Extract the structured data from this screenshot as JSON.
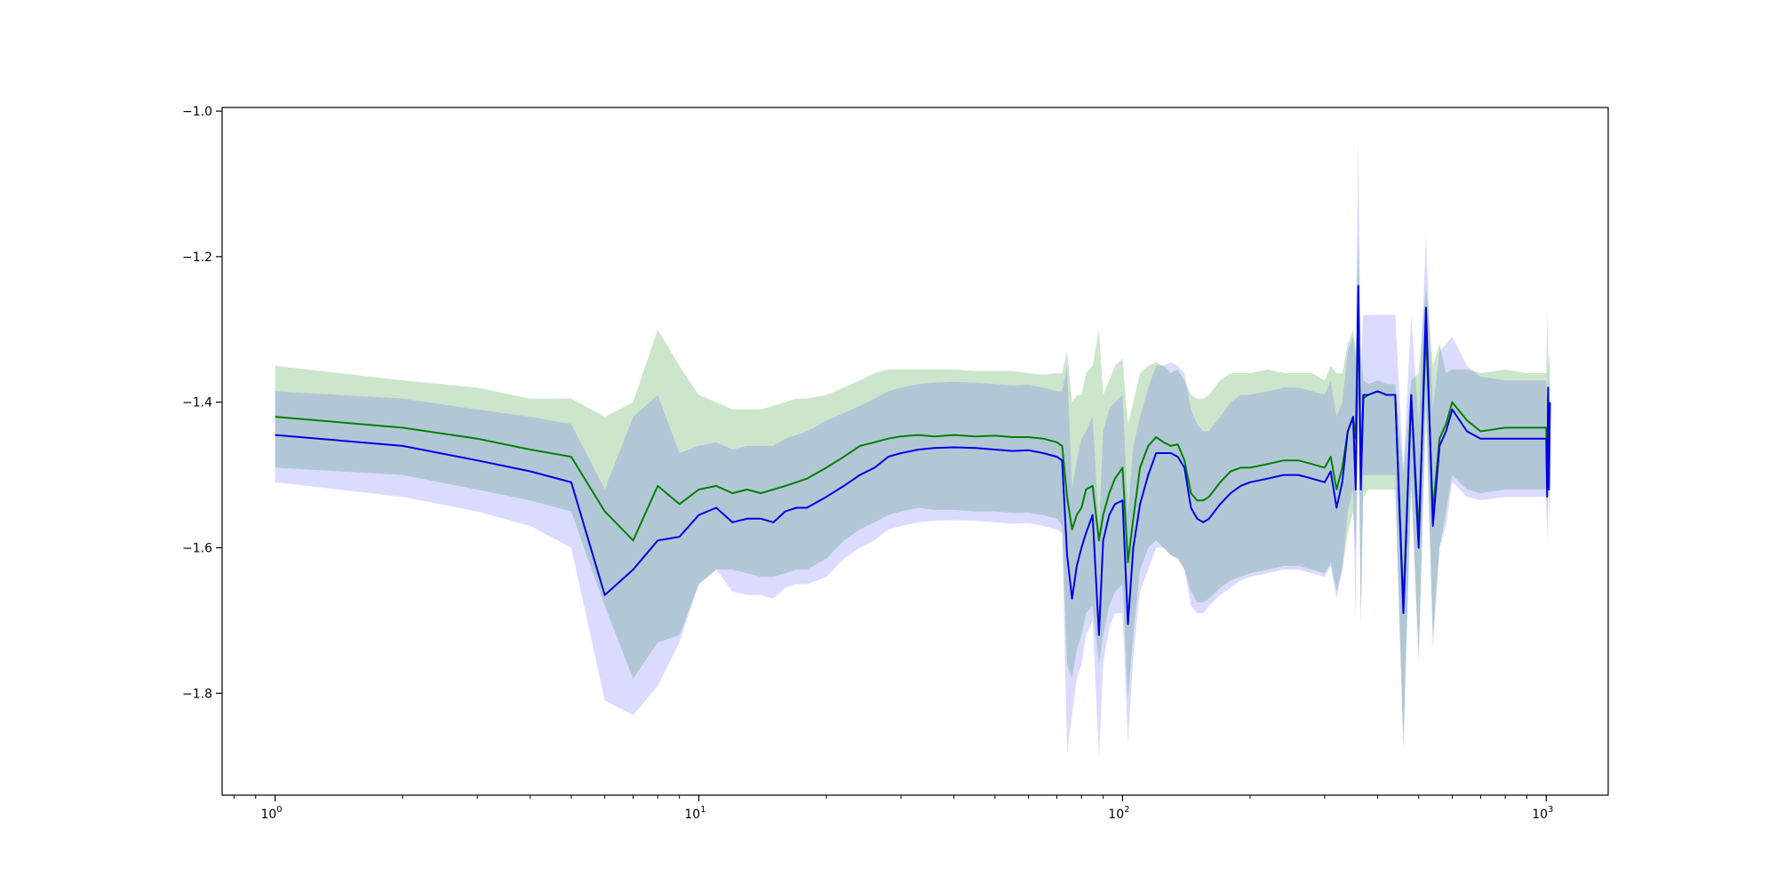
{
  "chart_data": {
    "type": "line",
    "xscale": "log",
    "xlim": [
      0.75,
      1400
    ],
    "ylim": [
      -1.94,
      -0.995
    ],
    "xticks": [
      {
        "value": 1,
        "base": "10",
        "exp": "0"
      },
      {
        "value": 10,
        "base": "10",
        "exp": "1"
      },
      {
        "value": 100,
        "base": "10",
        "exp": "2"
      },
      {
        "value": 1000,
        "base": "10",
        "exp": "3"
      }
    ],
    "yticks": [
      {
        "value": -1.0,
        "label": "−1.0"
      },
      {
        "value": -1.2,
        "label": "−1.2"
      },
      {
        "value": -1.4,
        "label": "−1.4"
      },
      {
        "value": -1.6,
        "label": "−1.6"
      },
      {
        "value": -1.8,
        "label": "−1.8"
      }
    ],
    "grid": false,
    "legend": "none",
    "series": [
      {
        "color": "#008000",
        "band_color": "#008000",
        "x": [
          1,
          2,
          3,
          4,
          5,
          6,
          7,
          8,
          9,
          10,
          11,
          12,
          13,
          14,
          15,
          16,
          17,
          18,
          20,
          22,
          24,
          26,
          28,
          30,
          33,
          36,
          40,
          45,
          50,
          55,
          60,
          65,
          70,
          72,
          74,
          76,
          78,
          80,
          82,
          85,
          88,
          90,
          93,
          96,
          100,
          103,
          106,
          110,
          115,
          120,
          125,
          130,
          135,
          140,
          145,
          150,
          155,
          160,
          170,
          180,
          190,
          200,
          220,
          240,
          260,
          280,
          300,
          310,
          320,
          330,
          340,
          350,
          355,
          360,
          365,
          370,
          380,
          400,
          420,
          440,
          460,
          480,
          500,
          520,
          540,
          560,
          580,
          600,
          650,
          700,
          800,
          900,
          1000,
          1005,
          1010,
          1015,
          1020
        ],
        "y": [
          -1.42,
          -1.435,
          -1.45,
          -1.465,
          -1.475,
          -1.55,
          -1.59,
          -1.515,
          -1.54,
          -1.52,
          -1.515,
          -1.525,
          -1.52,
          -1.525,
          -1.52,
          -1.515,
          -1.51,
          -1.505,
          -1.49,
          -1.475,
          -1.46,
          -1.455,
          -1.45,
          -1.447,
          -1.445,
          -1.447,
          -1.445,
          -1.447,
          -1.446,
          -1.448,
          -1.448,
          -1.45,
          -1.455,
          -1.46,
          -1.53,
          -1.575,
          -1.555,
          -1.545,
          -1.52,
          -1.515,
          -1.59,
          -1.555,
          -1.525,
          -1.505,
          -1.49,
          -1.62,
          -1.56,
          -1.49,
          -1.46,
          -1.448,
          -1.455,
          -1.46,
          -1.458,
          -1.48,
          -1.525,
          -1.535,
          -1.535,
          -1.53,
          -1.51,
          -1.495,
          -1.49,
          -1.49,
          -1.485,
          -1.48,
          -1.48,
          -1.485,
          -1.49,
          -1.475,
          -1.52,
          -1.49,
          -1.44,
          -1.42,
          -1.45,
          -1.26,
          -1.5,
          -1.395,
          -1.39,
          -1.385,
          -1.39,
          -1.39,
          -1.68,
          -1.39,
          -1.58,
          -1.3,
          -1.55,
          -1.45,
          -1.43,
          -1.4,
          -1.425,
          -1.44,
          -1.435,
          -1.435,
          -1.435,
          -1.52,
          -1.39,
          -1.5,
          -1.4
        ],
        "lower": [
          -1.49,
          -1.5,
          -1.52,
          -1.535,
          -1.55,
          -1.68,
          -1.78,
          -1.73,
          -1.72,
          -1.65,
          -1.63,
          -1.63,
          -1.635,
          -1.64,
          -1.64,
          -1.635,
          -1.63,
          -1.63,
          -1.615,
          -1.59,
          -1.575,
          -1.565,
          -1.555,
          -1.55,
          -1.545,
          -1.548,
          -1.548,
          -1.55,
          -1.55,
          -1.552,
          -1.552,
          -1.555,
          -1.56,
          -1.57,
          -1.76,
          -1.78,
          -1.74,
          -1.72,
          -1.69,
          -1.68,
          -1.76,
          -1.72,
          -1.68,
          -1.66,
          -1.65,
          -1.81,
          -1.72,
          -1.63,
          -1.6,
          -1.59,
          -1.6,
          -1.61,
          -1.615,
          -1.63,
          -1.66,
          -1.675,
          -1.675,
          -1.67,
          -1.655,
          -1.645,
          -1.64,
          -1.635,
          -1.63,
          -1.625,
          -1.625,
          -1.63,
          -1.635,
          -1.62,
          -1.66,
          -1.63,
          -1.58,
          -1.55,
          -1.6,
          -1.4,
          -1.7,
          -1.53,
          -1.52,
          -1.52,
          -1.52,
          -1.52,
          -1.87,
          -1.52,
          -1.75,
          -1.42,
          -1.72,
          -1.6,
          -1.55,
          -1.5,
          -1.52,
          -1.525,
          -1.52,
          -1.52,
          -1.52,
          -1.58,
          -1.46,
          -1.56,
          -1.48
        ],
        "upper": [
          -1.35,
          -1.37,
          -1.38,
          -1.395,
          -1.395,
          -1.42,
          -1.4,
          -1.3,
          -1.35,
          -1.39,
          -1.4,
          -1.41,
          -1.41,
          -1.41,
          -1.405,
          -1.4,
          -1.395,
          -1.395,
          -1.39,
          -1.38,
          -1.37,
          -1.36,
          -1.355,
          -1.355,
          -1.355,
          -1.355,
          -1.355,
          -1.357,
          -1.357,
          -1.357,
          -1.36,
          -1.362,
          -1.36,
          -1.36,
          -1.33,
          -1.4,
          -1.39,
          -1.39,
          -1.36,
          -1.35,
          -1.3,
          -1.39,
          -1.37,
          -1.35,
          -1.34,
          -1.43,
          -1.4,
          -1.36,
          -1.35,
          -1.345,
          -1.35,
          -1.36,
          -1.355,
          -1.37,
          -1.39,
          -1.395,
          -1.395,
          -1.39,
          -1.37,
          -1.36,
          -1.36,
          -1.36,
          -1.355,
          -1.36,
          -1.36,
          -1.36,
          -1.37,
          -1.35,
          -1.36,
          -1.36,
          -1.32,
          -1.3,
          -1.33,
          -1.17,
          -1.33,
          -1.37,
          -1.375,
          -1.37,
          -1.375,
          -1.375,
          -1.5,
          -1.37,
          -1.36,
          -1.24,
          -1.35,
          -1.32,
          -1.36,
          -1.355,
          -1.355,
          -1.36,
          -1.355,
          -1.36,
          -1.36,
          -1.27,
          -1.36,
          -1.33,
          -1.36
        ]
      },
      {
        "color": "#0000e6",
        "band_color": "#4d4dff",
        "x": [
          1,
          2,
          3,
          4,
          5,
          6,
          7,
          8,
          9,
          10,
          11,
          12,
          13,
          14,
          15,
          16,
          17,
          18,
          20,
          22,
          24,
          26,
          28,
          30,
          33,
          36,
          40,
          45,
          50,
          55,
          60,
          65,
          70,
          72,
          74,
          76,
          78,
          80,
          82,
          85,
          88,
          90,
          93,
          96,
          100,
          103,
          106,
          110,
          115,
          120,
          125,
          130,
          135,
          140,
          145,
          150,
          155,
          160,
          170,
          180,
          190,
          200,
          220,
          240,
          260,
          280,
          300,
          310,
          320,
          330,
          340,
          350,
          355,
          360,
          365,
          370,
          380,
          400,
          420,
          440,
          460,
          480,
          500,
          520,
          540,
          560,
          580,
          600,
          650,
          700,
          800,
          900,
          1000,
          1005,
          1010,
          1015,
          1020
        ],
        "y": [
          -1.445,
          -1.46,
          -1.48,
          -1.495,
          -1.51,
          -1.665,
          -1.63,
          -1.59,
          -1.585,
          -1.555,
          -1.545,
          -1.565,
          -1.56,
          -1.56,
          -1.565,
          -1.55,
          -1.545,
          -1.545,
          -1.53,
          -1.515,
          -1.5,
          -1.49,
          -1.475,
          -1.47,
          -1.465,
          -1.463,
          -1.462,
          -1.463,
          -1.465,
          -1.467,
          -1.466,
          -1.47,
          -1.475,
          -1.48,
          -1.61,
          -1.67,
          -1.625,
          -1.6,
          -1.58,
          -1.555,
          -1.72,
          -1.59,
          -1.555,
          -1.54,
          -1.535,
          -1.705,
          -1.6,
          -1.54,
          -1.5,
          -1.47,
          -1.47,
          -1.47,
          -1.475,
          -1.49,
          -1.545,
          -1.56,
          -1.565,
          -1.56,
          -1.54,
          -1.525,
          -1.515,
          -1.51,
          -1.505,
          -1.5,
          -1.5,
          -1.505,
          -1.51,
          -1.495,
          -1.545,
          -1.51,
          -1.44,
          -1.42,
          -1.52,
          -1.24,
          -1.52,
          -1.39,
          -1.39,
          -1.385,
          -1.39,
          -1.39,
          -1.69,
          -1.39,
          -1.6,
          -1.27,
          -1.57,
          -1.46,
          -1.44,
          -1.41,
          -1.44,
          -1.45,
          -1.45,
          -1.45,
          -1.45,
          -1.53,
          -1.38,
          -1.52,
          -1.4
        ],
        "lower": [
          -1.51,
          -1.53,
          -1.55,
          -1.57,
          -1.6,
          -1.81,
          -1.83,
          -1.79,
          -1.73,
          -1.65,
          -1.63,
          -1.66,
          -1.665,
          -1.665,
          -1.67,
          -1.655,
          -1.65,
          -1.65,
          -1.64,
          -1.615,
          -1.6,
          -1.59,
          -1.575,
          -1.57,
          -1.565,
          -1.563,
          -1.562,
          -1.563,
          -1.565,
          -1.567,
          -1.566,
          -1.57,
          -1.575,
          -1.58,
          -1.88,
          -1.83,
          -1.78,
          -1.76,
          -1.72,
          -1.7,
          -1.89,
          -1.76,
          -1.71,
          -1.69,
          -1.69,
          -1.87,
          -1.75,
          -1.66,
          -1.63,
          -1.6,
          -1.6,
          -1.61,
          -1.615,
          -1.63,
          -1.68,
          -1.69,
          -1.69,
          -1.68,
          -1.665,
          -1.655,
          -1.645,
          -1.64,
          -1.635,
          -1.63,
          -1.63,
          -1.635,
          -1.64,
          -1.625,
          -1.67,
          -1.63,
          -1.55,
          -1.52,
          -1.7,
          -1.4,
          -1.71,
          -1.5,
          -1.5,
          -1.5,
          -1.5,
          -1.5,
          -1.88,
          -1.5,
          -1.76,
          -1.38,
          -1.74,
          -1.6,
          -1.57,
          -1.51,
          -1.53,
          -1.535,
          -1.53,
          -1.53,
          -1.53,
          -1.6,
          -1.45,
          -1.58,
          -1.47
        ],
        "upper": [
          -1.385,
          -1.395,
          -1.41,
          -1.42,
          -1.43,
          -1.52,
          -1.42,
          -1.39,
          -1.47,
          -1.46,
          -1.455,
          -1.465,
          -1.46,
          -1.46,
          -1.46,
          -1.45,
          -1.445,
          -1.44,
          -1.425,
          -1.415,
          -1.405,
          -1.395,
          -1.385,
          -1.38,
          -1.375,
          -1.373,
          -1.372,
          -1.373,
          -1.375,
          -1.377,
          -1.376,
          -1.38,
          -1.385,
          -1.385,
          -1.35,
          -1.52,
          -1.48,
          -1.45,
          -1.44,
          -1.42,
          -1.57,
          -1.44,
          -1.41,
          -1.4,
          -1.39,
          -1.55,
          -1.46,
          -1.42,
          -1.38,
          -1.35,
          -1.35,
          -1.345,
          -1.35,
          -1.36,
          -1.41,
          -1.43,
          -1.44,
          -1.44,
          -1.42,
          -1.4,
          -1.39,
          -1.39,
          -1.385,
          -1.38,
          -1.38,
          -1.385,
          -1.39,
          -1.37,
          -1.42,
          -1.4,
          -1.33,
          -1.31,
          -1.34,
          -1.04,
          -1.35,
          -1.28,
          -1.28,
          -1.28,
          -1.28,
          -1.28,
          -1.49,
          -1.28,
          -1.43,
          -1.17,
          -1.41,
          -1.33,
          -1.32,
          -1.31,
          -1.35,
          -1.365,
          -1.37,
          -1.37,
          -1.37,
          -1.46,
          -1.3,
          -1.46,
          -1.33
        ]
      }
    ]
  }
}
